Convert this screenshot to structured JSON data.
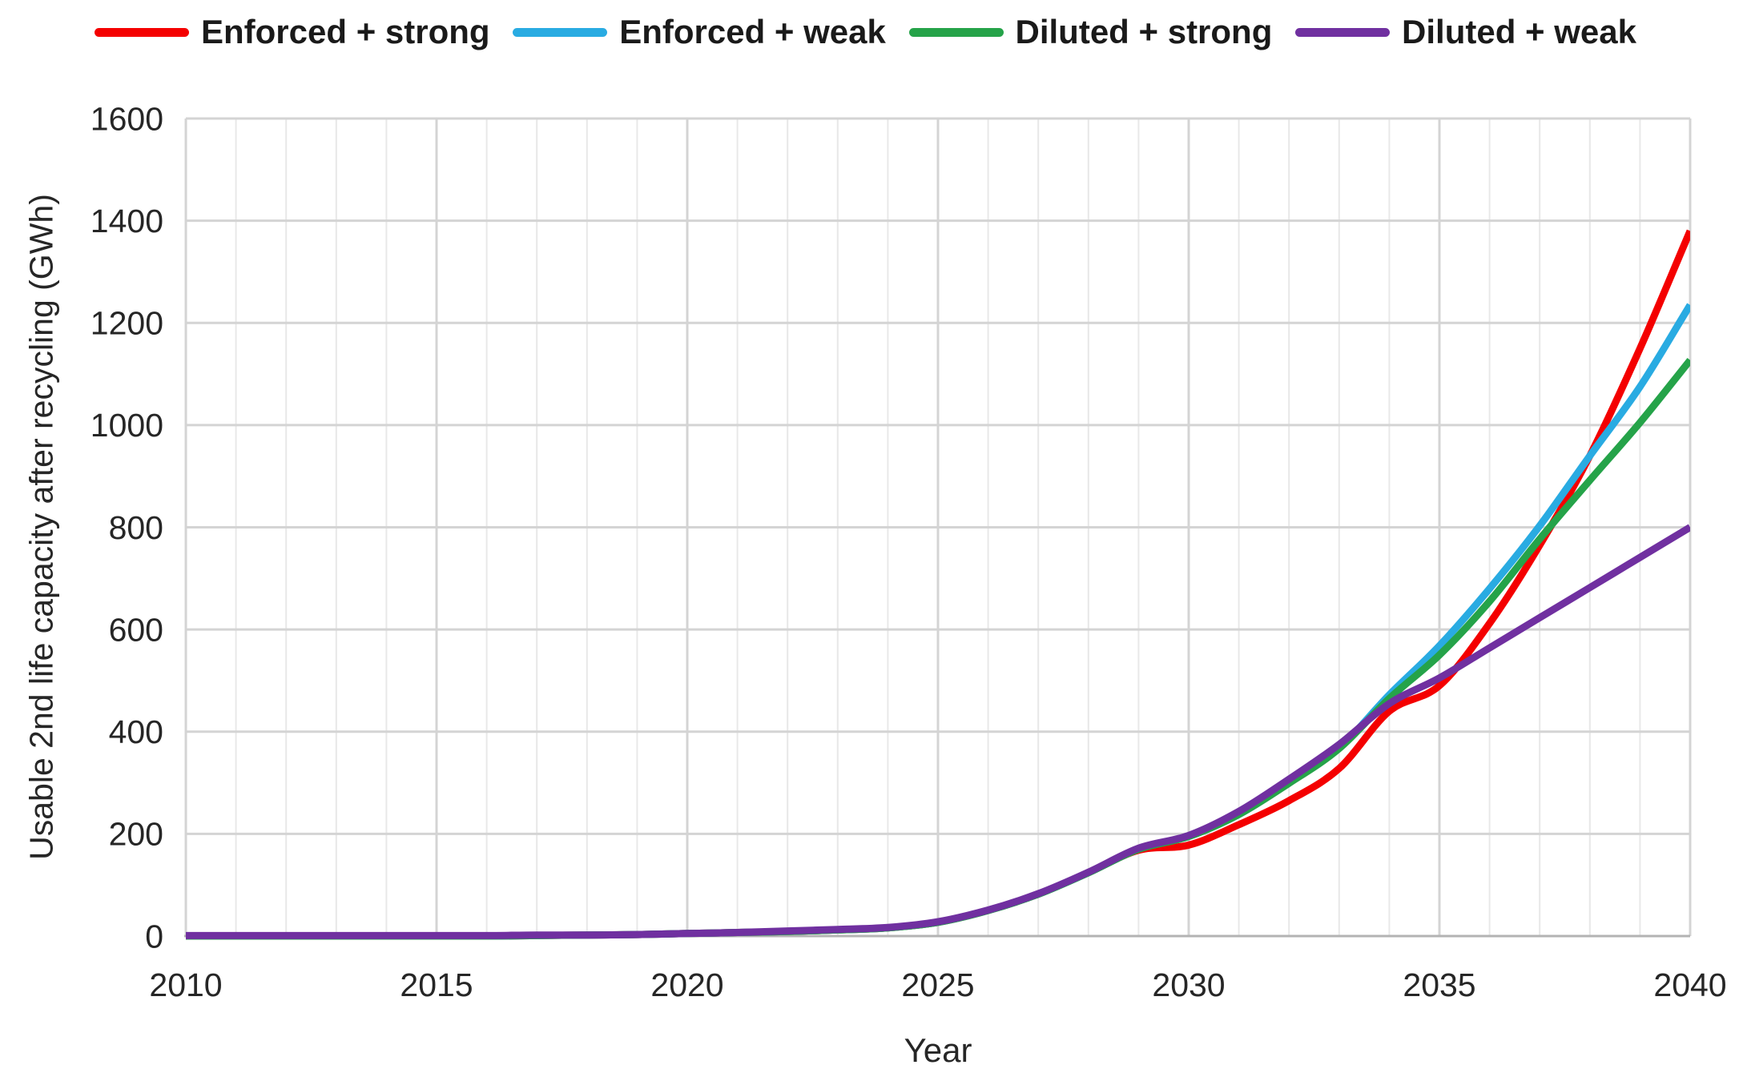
{
  "chart_data": {
    "type": "line",
    "title": "",
    "xlabel": "Year",
    "ylabel": "Usable 2nd life capacity after recycling (GWh)",
    "xlim": [
      2010,
      2040
    ],
    "ylim": [
      0,
      1600
    ],
    "xticks": [
      2010,
      2015,
      2020,
      2025,
      2030,
      2035,
      2040
    ],
    "yticks": [
      0,
      200,
      400,
      600,
      800,
      1000,
      1200,
      1400,
      1600
    ],
    "grid": {
      "vertical_every_years": 1,
      "vertical_major_every_years": 5,
      "horizontal_every": 200,
      "shown": true
    },
    "legend_position": "top",
    "x": [
      2010,
      2011,
      2012,
      2013,
      2014,
      2015,
      2016,
      2017,
      2018,
      2019,
      2020,
      2021,
      2022,
      2023,
      2024,
      2025,
      2026,
      2027,
      2028,
      2029,
      2030,
      2031,
      2032,
      2033,
      2034,
      2035,
      2036,
      2037,
      2038,
      2039,
      2040
    ],
    "series": [
      {
        "name": "Enforced + strong",
        "color": "#f40000",
        "values": [
          0,
          0,
          0,
          0,
          0,
          0,
          0,
          1,
          2,
          3,
          5,
          7,
          9,
          12,
          16,
          27,
          50,
          82,
          124,
          168,
          178,
          218,
          265,
          328,
          440,
          490,
          612,
          765,
          940,
          1150,
          1380
        ]
      },
      {
        "name": "Enforced + weak",
        "color": "#29abe2",
        "values": [
          0,
          0,
          0,
          0,
          0,
          0,
          0,
          1,
          2,
          3,
          5,
          7,
          9,
          12,
          16,
          27,
          50,
          82,
          124,
          170,
          195,
          238,
          300,
          368,
          472,
          568,
          680,
          803,
          940,
          1075,
          1235
        ]
      },
      {
        "name": "Diluted + strong",
        "color": "#25a349",
        "values": [
          0,
          0,
          0,
          0,
          0,
          0,
          0,
          1,
          2,
          3,
          5,
          7,
          9,
          12,
          16,
          27,
          50,
          82,
          124,
          170,
          195,
          238,
          299,
          367,
          465,
          550,
          655,
          777,
          892,
          1005,
          1127
        ]
      },
      {
        "name": "Diluted + weak",
        "color": "#7030a0",
        "values": [
          1,
          1,
          1,
          1,
          1,
          1,
          1,
          2,
          2,
          3,
          5,
          7,
          10,
          13,
          17,
          28,
          51,
          83,
          125,
          172,
          197,
          244,
          307,
          375,
          455,
          505,
          564,
          623,
          682,
          741,
          800
        ]
      }
    ],
    "colors": {
      "grid_major": "#d4d4d4",
      "grid_minor": "#e8e8e8",
      "axis_line": "#b3b3b3",
      "tick_text": "#262626"
    }
  }
}
